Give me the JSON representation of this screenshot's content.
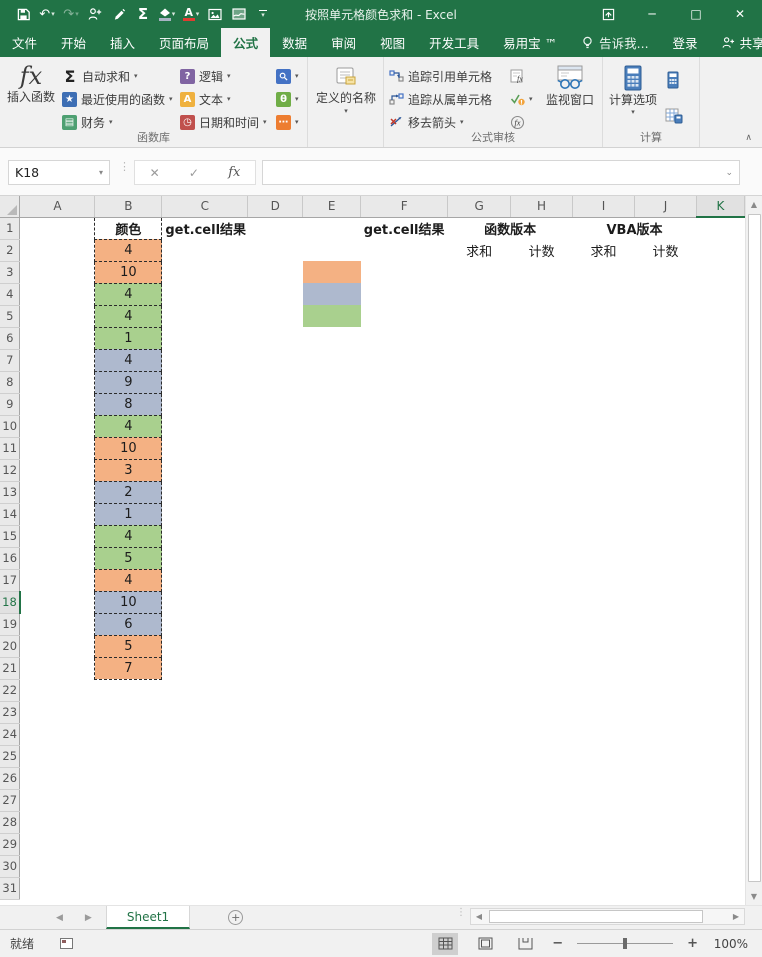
{
  "window": {
    "title": "按照单元格颜色求和 - Excel",
    "controls": {
      "ribbon_display": "ribbon-display-options",
      "minimize": "─",
      "maximize": "□",
      "close": "✕"
    }
  },
  "qat": {
    "icons": [
      "save-icon",
      "undo-icon",
      "redo-icon",
      "add-user-icon",
      "format-painter-icon",
      "autosum-icon",
      "fill-color-icon",
      "font-color-icon",
      "picture-icon",
      "screenshot-icon",
      "customize-qat-icon"
    ]
  },
  "tabs": {
    "items": [
      "文件",
      "开始",
      "插入",
      "页面布局",
      "公式",
      "数据",
      "审阅",
      "视图",
      "开发工具",
      "易用宝 ™"
    ],
    "active_index": 4,
    "tell_me": "告诉我...",
    "sign_in": "登录",
    "share": "共享"
  },
  "ribbon": {
    "insert_function": "插入函数",
    "lib_col1": [
      "自动求和",
      "最近使用的函数",
      "财务"
    ],
    "lib_col2": [
      "逻辑",
      "文本",
      "日期和时间"
    ],
    "lib_col3_icons": [
      "lookup-reference-icon",
      "math-trig-icon",
      "more-functions-icon"
    ],
    "defined_names": "定义的名称",
    "audit_items": [
      "追踪引用单元格",
      "追踪从属单元格",
      "移去箭头"
    ],
    "watch_window": "监视窗口",
    "calc_options": "计算选项",
    "group_labels": [
      "函数库",
      "公式审核",
      "计算"
    ]
  },
  "formula_bar": {
    "name_box": "K18",
    "formula": ""
  },
  "grid": {
    "col_letters": [
      "A",
      "B",
      "C",
      "D",
      "E",
      "F",
      "G",
      "H",
      "I",
      "J",
      "K"
    ],
    "row_count": 31,
    "selection": {
      "col": "K",
      "row": 18
    },
    "fill_colors": {
      "orange": "#F4B183",
      "green": "#A9D08E",
      "blue": "#AEB9CE"
    },
    "cells": {
      "B1": {
        "text": "颜色",
        "bold": true
      },
      "C1": {
        "text": "get.cell结果",
        "bold": true,
        "align": "left"
      },
      "F1": {
        "text": "get.cell结果",
        "bold": true
      },
      "G1": {
        "text": "函数版本",
        "bold": true,
        "span": 2
      },
      "I1": {
        "text": "VBA版本",
        "bold": true,
        "span": 2
      },
      "G2": {
        "text": "求和"
      },
      "H2": {
        "text": "计数"
      },
      "I2": {
        "text": "求和"
      },
      "J2": {
        "text": "计数"
      }
    },
    "color_column": [
      [
        "4",
        "orange"
      ],
      [
        "10",
        "orange"
      ],
      [
        "4",
        "green"
      ],
      [
        "4",
        "green"
      ],
      [
        "1",
        "green"
      ],
      [
        "4",
        "blue"
      ],
      [
        "9",
        "blue"
      ],
      [
        "8",
        "blue"
      ],
      [
        "4",
        "green"
      ],
      [
        "10",
        "orange"
      ],
      [
        "3",
        "orange"
      ],
      [
        "2",
        "blue"
      ],
      [
        "1",
        "blue"
      ],
      [
        "4",
        "green"
      ],
      [
        "5",
        "green"
      ],
      [
        "4",
        "orange"
      ],
      [
        "10",
        "blue"
      ],
      [
        "6",
        "blue"
      ],
      [
        "5",
        "orange"
      ],
      [
        "7",
        "orange"
      ]
    ],
    "swatches": {
      "E3": "orange",
      "E4": "blue",
      "E5": "green"
    }
  },
  "sheet_bar": {
    "active_tab": "Sheet1",
    "add_sheet": "new-sheet-button"
  },
  "status_bar": {
    "mode": "就绪",
    "zoom_level": "100%"
  }
}
